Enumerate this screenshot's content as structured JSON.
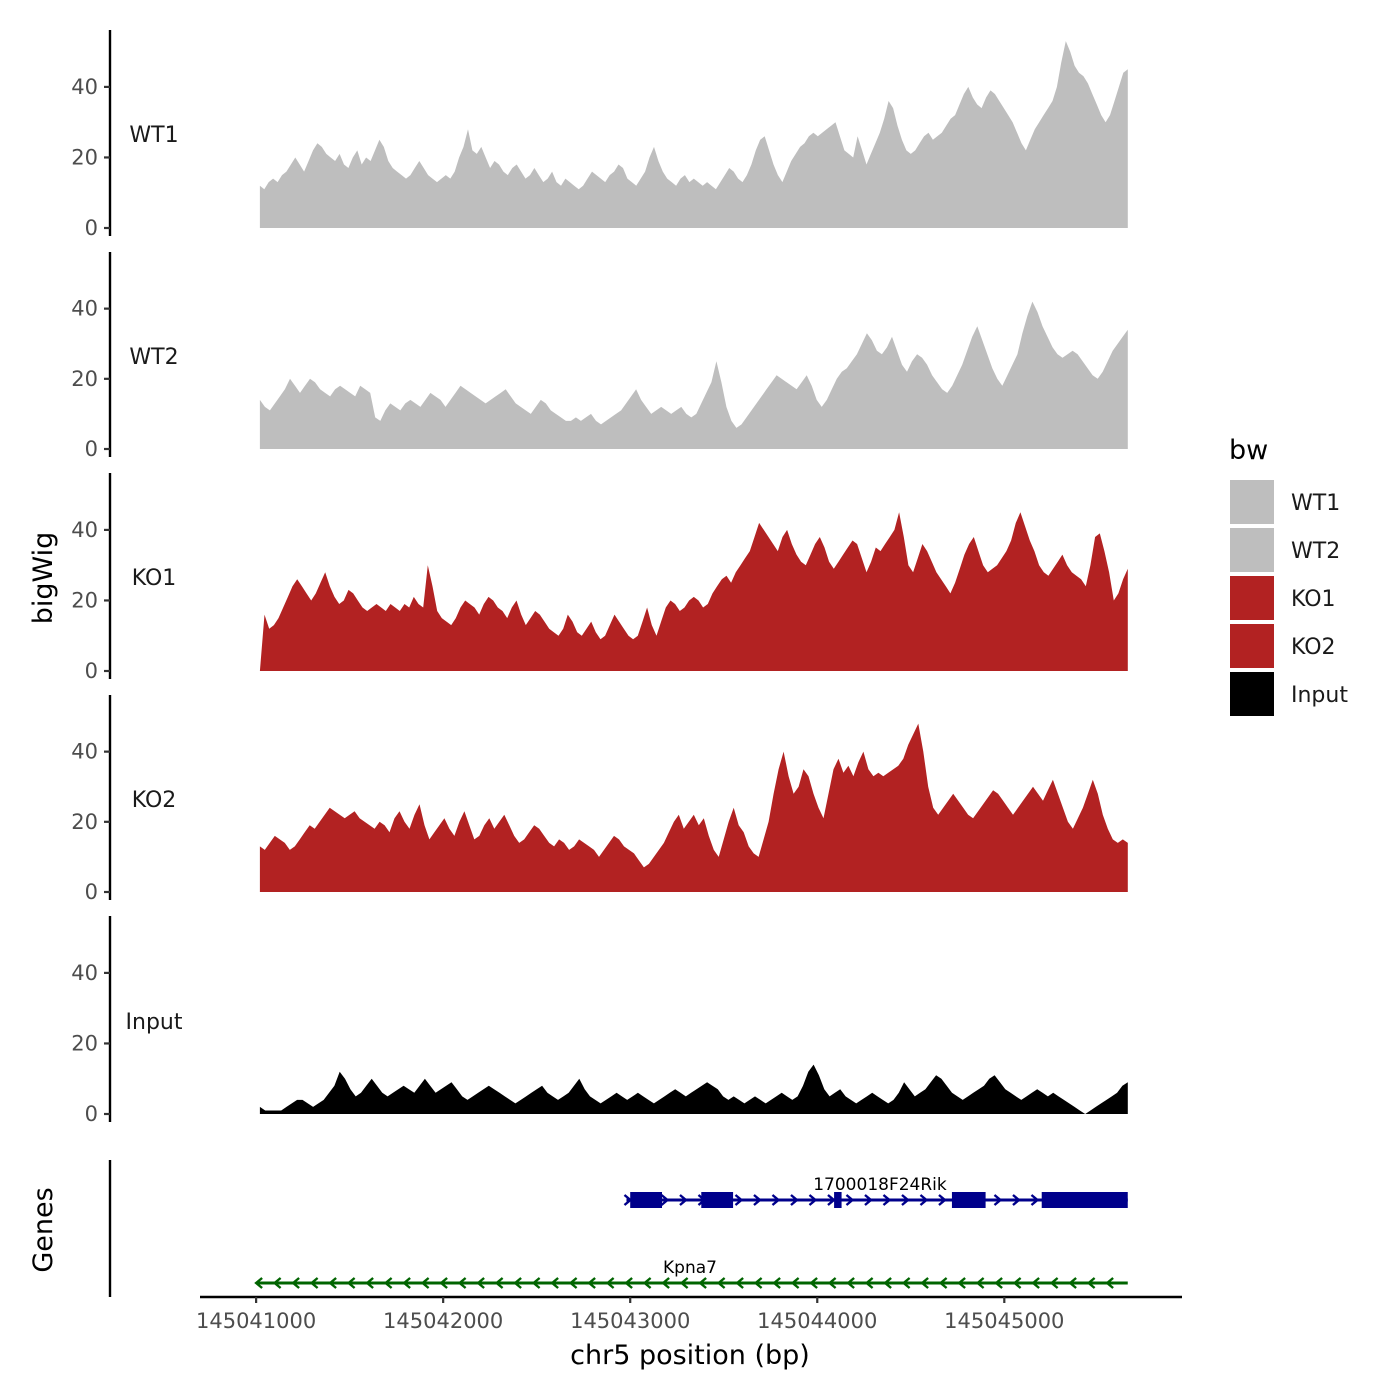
{
  "chart_data": {
    "type": "area",
    "x_axis": {
      "title": "chr5 position (bp)",
      "range": [
        145040700,
        145045950
      ],
      "ticks": [
        145041000,
        145042000,
        145043000,
        145044000,
        145045000
      ],
      "tick_labels": [
        "145041000",
        "145042000",
        "145043000",
        "145044000",
        "145045000"
      ]
    },
    "y_axis": {
      "title": "bigWig",
      "range": [
        0,
        55
      ],
      "ticks": [
        0,
        20,
        40
      ],
      "tick_labels": [
        "0",
        "20",
        "40"
      ]
    },
    "track_x_range": [
      145041020,
      145045660
    ],
    "tracks": [
      {
        "name": "WT1",
        "color": "#bebebe",
        "values": [
          12,
          11,
          13,
          14,
          13,
          15,
          16,
          18,
          20,
          18,
          16,
          19,
          22,
          24,
          23,
          21,
          20,
          19,
          21,
          18,
          17,
          20,
          22,
          18,
          20,
          19,
          22,
          25,
          23,
          19,
          17,
          16,
          15,
          14,
          15,
          17,
          19,
          17,
          15,
          14,
          13,
          14,
          15,
          14,
          16,
          20,
          23,
          28,
          22,
          21,
          23,
          20,
          17,
          19,
          18,
          16,
          15,
          17,
          18,
          16,
          14,
          15,
          17,
          15,
          13,
          14,
          16,
          13,
          12,
          14,
          13,
          12,
          11,
          12,
          14,
          16,
          15,
          14,
          13,
          15,
          16,
          18,
          17,
          14,
          13,
          12,
          14,
          16,
          20,
          23,
          19,
          16,
          14,
          13,
          12,
          14,
          15,
          13,
          14,
          13,
          12,
          13,
          12,
          11,
          13,
          15,
          17,
          16,
          14,
          13,
          15,
          18,
          22,
          25,
          26,
          22,
          18,
          15,
          13,
          16,
          19,
          21,
          23,
          24,
          26,
          27,
          26,
          27,
          28,
          29,
          30,
          26,
          22,
          21,
          20,
          26,
          22,
          18,
          21,
          24,
          27,
          31,
          36,
          34,
          29,
          25,
          22,
          21,
          22,
          24,
          26,
          27,
          25,
          26,
          27,
          29,
          31,
          32,
          35,
          38,
          40,
          37,
          35,
          34,
          37,
          39,
          38,
          36,
          34,
          32,
          30,
          27,
          24,
          22,
          25,
          28,
          30,
          32,
          34,
          36,
          40,
          47,
          53,
          50,
          46,
          44,
          43,
          41,
          38,
          35,
          32,
          30,
          32,
          36,
          40,
          44,
          45
        ]
      },
      {
        "name": "WT2",
        "color": "#bebebe",
        "values": [
          14,
          12,
          11,
          13,
          15,
          17,
          20,
          18,
          16,
          18,
          20,
          19,
          17,
          16,
          15,
          17,
          18,
          17,
          16,
          15,
          18,
          17,
          16,
          9,
          8,
          11,
          13,
          12,
          11,
          13,
          14,
          13,
          12,
          14,
          16,
          15,
          14,
          12,
          14,
          16,
          18,
          17,
          16,
          15,
          14,
          13,
          14,
          15,
          16,
          17,
          15,
          13,
          12,
          11,
          10,
          12,
          14,
          13,
          11,
          10,
          9,
          8,
          8,
          9,
          8,
          9,
          10,
          8,
          7,
          8,
          9,
          10,
          11,
          13,
          15,
          17,
          14,
          12,
          10,
          11,
          12,
          11,
          10,
          11,
          12,
          10,
          9,
          10,
          13,
          16,
          19,
          25,
          19,
          12,
          8,
          6,
          7,
          9,
          11,
          13,
          15,
          17,
          19,
          21,
          20,
          19,
          18,
          17,
          19,
          21,
          18,
          14,
          12,
          14,
          17,
          20,
          22,
          23,
          25,
          27,
          30,
          33,
          31,
          28,
          27,
          29,
          32,
          28,
          24,
          22,
          25,
          27,
          26,
          24,
          21,
          19,
          17,
          16,
          18,
          21,
          24,
          28,
          32,
          35,
          31,
          27,
          23,
          20,
          18,
          21,
          24,
          27,
          33,
          38,
          42,
          39,
          35,
          32,
          29,
          27,
          26,
          27,
          28,
          27,
          25,
          23,
          21,
          20,
          22,
          25,
          28,
          30,
          32,
          34
        ]
      },
      {
        "name": "KO1",
        "color": "#b22222",
        "values": [
          0,
          16,
          12,
          13,
          15,
          18,
          21,
          24,
          26,
          24,
          22,
          20,
          22,
          25,
          28,
          24,
          21,
          19,
          20,
          23,
          22,
          20,
          18,
          17,
          18,
          19,
          18,
          17,
          19,
          18,
          17,
          19,
          18,
          21,
          19,
          18,
          30,
          24,
          17,
          15,
          14,
          13,
          15,
          18,
          20,
          19,
          18,
          16,
          19,
          21,
          20,
          18,
          17,
          15,
          18,
          20,
          16,
          13,
          15,
          17,
          16,
          14,
          12,
          11,
          10,
          12,
          16,
          14,
          11,
          10,
          12,
          14,
          11,
          9,
          10,
          13,
          16,
          14,
          12,
          10,
          9,
          10,
          14,
          18,
          13,
          10,
          14,
          18,
          20,
          19,
          17,
          18,
          20,
          21,
          20,
          18,
          19,
          22,
          24,
          26,
          27,
          25,
          28,
          30,
          32,
          34,
          38,
          42,
          40,
          38,
          36,
          34,
          38,
          40,
          36,
          33,
          31,
          30,
          33,
          36,
          38,
          35,
          31,
          29,
          31,
          33,
          35,
          37,
          36,
          32,
          28,
          31,
          35,
          34,
          36,
          38,
          40,
          45,
          38,
          30,
          28,
          32,
          36,
          34,
          31,
          28,
          26,
          24,
          22,
          25,
          29,
          33,
          36,
          38,
          34,
          30,
          28,
          29,
          30,
          32,
          34,
          37,
          42,
          45,
          41,
          37,
          34,
          30,
          28,
          27,
          29,
          31,
          33,
          30,
          28,
          27,
          26,
          24,
          30,
          38,
          39,
          34,
          28,
          20,
          22,
          26,
          29
        ]
      },
      {
        "name": "KO2",
        "color": "#b22222",
        "values": [
          13,
          12,
          14,
          16,
          15,
          14,
          12,
          13,
          15,
          17,
          19,
          18,
          20,
          22,
          24,
          23,
          22,
          21,
          22,
          23,
          21,
          20,
          19,
          18,
          20,
          19,
          17,
          21,
          23,
          20,
          18,
          22,
          25,
          19,
          15,
          17,
          19,
          21,
          18,
          16,
          20,
          23,
          19,
          15,
          16,
          19,
          21,
          18,
          20,
          22,
          19,
          16,
          14,
          15,
          17,
          19,
          18,
          16,
          14,
          13,
          15,
          14,
          12,
          13,
          15,
          14,
          13,
          12,
          10,
          12,
          14,
          16,
          15,
          13,
          12,
          11,
          9,
          7,
          8,
          10,
          12,
          14,
          17,
          20,
          22,
          18,
          20,
          22,
          19,
          21,
          16,
          12,
          10,
          15,
          20,
          24,
          19,
          17,
          13,
          11,
          10,
          15,
          20,
          28,
          35,
          40,
          33,
          28,
          30,
          35,
          33,
          28,
          24,
          21,
          28,
          35,
          38,
          34,
          36,
          33,
          37,
          40,
          35,
          33,
          34,
          33,
          34,
          35,
          36,
          38,
          42,
          45,
          48,
          40,
          30,
          24,
          22,
          24,
          26,
          28,
          26,
          24,
          22,
          21,
          23,
          25,
          27,
          29,
          28,
          26,
          24,
          22,
          24,
          26,
          28,
          30,
          28,
          26,
          29,
          32,
          28,
          24,
          20,
          18,
          21,
          24,
          28,
          32,
          28,
          22,
          18,
          15,
          14,
          15,
          14
        ]
      },
      {
        "name": "Input",
        "color": "#000000",
        "values": [
          2,
          1,
          1,
          1,
          1,
          2,
          3,
          4,
          4,
          3,
          2,
          3,
          4,
          6,
          8,
          12,
          10,
          7,
          5,
          6,
          8,
          10,
          8,
          6,
          5,
          6,
          7,
          8,
          7,
          6,
          8,
          10,
          8,
          6,
          7,
          8,
          9,
          7,
          5,
          4,
          5,
          6,
          7,
          8,
          7,
          6,
          5,
          4,
          3,
          4,
          5,
          6,
          7,
          8,
          6,
          5,
          4,
          5,
          6,
          8,
          10,
          7,
          5,
          4,
          3,
          4,
          5,
          6,
          5,
          4,
          5,
          6,
          5,
          4,
          3,
          4,
          5,
          6,
          7,
          6,
          5,
          6,
          7,
          8,
          9,
          8,
          7,
          5,
          4,
          5,
          4,
          3,
          4,
          5,
          4,
          3,
          4,
          5,
          6,
          5,
          4,
          5,
          8,
          12,
          14,
          11,
          7,
          5,
          6,
          7,
          5,
          4,
          3,
          4,
          5,
          6,
          5,
          4,
          3,
          4,
          6,
          9,
          7,
          5,
          6,
          7,
          9,
          11,
          10,
          8,
          6,
          5,
          4,
          5,
          6,
          7,
          8,
          10,
          11,
          9,
          7,
          6,
          5,
          4,
          5,
          6,
          7,
          6,
          5,
          6,
          5,
          4,
          3,
          2,
          1,
          0,
          1,
          2,
          3,
          4,
          5,
          6,
          8,
          9
        ]
      }
    ],
    "legend": {
      "title": "bw",
      "position": "right",
      "entries": [
        {
          "label": "WT1",
          "color": "#bebebe"
        },
        {
          "label": "WT2",
          "color": "#bebebe"
        },
        {
          "label": "KO1",
          "color": "#b22222"
        },
        {
          "label": "KO2",
          "color": "#b22222"
        },
        {
          "label": "Input",
          "color": "#000000"
        }
      ]
    },
    "genes_track": {
      "title": "Genes",
      "genes": [
        {
          "name": "1700018F24Rik",
          "strand": "+",
          "color": "#00008b",
          "start": 145042980,
          "end": 145045660,
          "exons": [
            [
              145043000,
              145043170
            ],
            [
              145043380,
              145043550
            ],
            [
              145044090,
              145044130
            ],
            [
              145044720,
              145044900
            ],
            [
              145045200,
              145045660
            ]
          ]
        },
        {
          "name": "Kpna7",
          "strand": "-",
          "color": "#006400",
          "start": 145041000,
          "end": 145045660,
          "exons": []
        }
      ]
    }
  }
}
